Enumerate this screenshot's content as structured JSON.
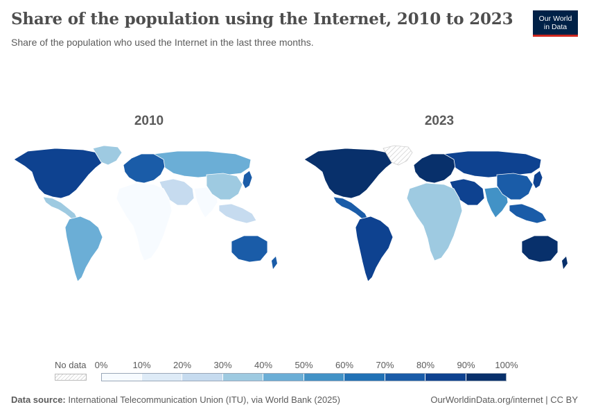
{
  "header": {
    "title": "Share of the population using the Internet, 2010 to 2023",
    "subtitle": "Share of the population who used the Internet in the last three months."
  },
  "logo": {
    "line1": "Our World",
    "line2": "in Data"
  },
  "panels": [
    {
      "year": "2010"
    },
    {
      "year": "2023"
    }
  ],
  "map_data": {
    "type": "choropleth",
    "regions": [
      "North America",
      "Greenland",
      "Mexico & Central America",
      "South America",
      "Europe",
      "Russia & Central Asia",
      "Middle East",
      "Africa",
      "South Asia",
      "China & East Asia",
      "Japan",
      "Southeast Asia",
      "Australia"
    ],
    "years": {
      "2010": [
        80,
        38,
        35,
        40,
        72,
        43,
        28,
        6,
        8,
        34,
        78,
        22,
        76
      ],
      "2023": [
        92,
        null,
        78,
        80,
        91,
        86,
        82,
        37,
        50,
        76,
        85,
        70,
        94
      ]
    }
  },
  "legend": {
    "no_data_label": "No data",
    "ticks": [
      "0%",
      "10%",
      "20%",
      "30%",
      "40%",
      "50%",
      "60%",
      "70%",
      "80%",
      "90%",
      "100%"
    ],
    "colors": [
      "#f7fbff",
      "#deebf7",
      "#c6dbef",
      "#9ecae1",
      "#6baed6",
      "#4292c6",
      "#2171b5",
      "#1a5ca8",
      "#0e4290",
      "#08306b"
    ]
  },
  "footer": {
    "source_label": "Data source:",
    "source_text": "International Telecommunication Union (ITU), via World Bank (2025)",
    "credit": "OurWorldinData.org/internet | CC BY"
  }
}
